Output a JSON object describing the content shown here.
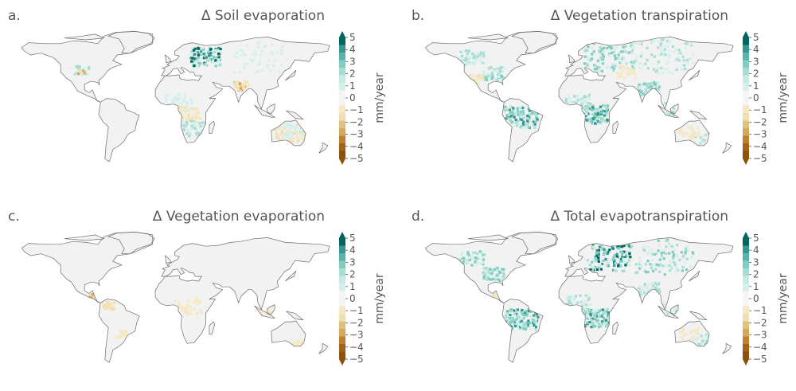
{
  "colors": {
    "land": "#f1f2f1",
    "coast": "#6b6b6b",
    "text": "#555555",
    "scale": [
      "#8c510a",
      "#a6611a",
      "#bf812d",
      "#d6a85f",
      "#dfc27d",
      "#f0dfb4",
      "#f6e8c3",
      "#f5f5f5",
      "#f5f5f5",
      "#d5efeb",
      "#c7eae5",
      "#a8ddd3",
      "#80cdc1",
      "#5ab4ac",
      "#35978f",
      "#01665e"
    ]
  },
  "colorbar": {
    "ticks": [
      "5",
      "4",
      "3",
      "2",
      "1",
      "0",
      "−1",
      "−2",
      "−3",
      "−4",
      "−5"
    ],
    "label": "mm/year",
    "range": [
      -5,
      5
    ],
    "extend": "both"
  },
  "panels": [
    {
      "letter": "a.",
      "title": "Δ Soil evaporation",
      "patches": [
        {
          "lon": 40,
          "lat": 56,
          "level": 5,
          "spread": 12,
          "count": 34
        },
        {
          "lon": 80,
          "lat": 25,
          "level": -3,
          "spread": 6,
          "count": 14
        },
        {
          "lon": 20,
          "lat": -5,
          "level": -2,
          "spread": 10,
          "count": 20
        },
        {
          "lon": 25,
          "lat": -20,
          "level": 2,
          "spread": 10,
          "count": 18
        },
        {
          "lon": 135,
          "lat": -25,
          "level": -2,
          "spread": 12,
          "count": 20
        },
        {
          "lon": 140,
          "lat": -22,
          "level": 1,
          "spread": 10,
          "count": 14
        },
        {
          "lon": -100,
          "lat": 42,
          "level": 2,
          "spread": 6,
          "count": 8
        },
        {
          "lon": -100,
          "lat": 40,
          "level": -3,
          "spread": 3,
          "count": 4
        },
        {
          "lon": 10,
          "lat": 8,
          "level": 1,
          "spread": 12,
          "count": 16
        },
        {
          "lon": 100,
          "lat": 55,
          "level": 1,
          "spread": 20,
          "count": 16
        }
      ]
    },
    {
      "letter": "b.",
      "title": "Δ Vegetation transpiration",
      "patches": [
        {
          "lon": -60,
          "lat": -8,
          "level": 4,
          "spread": 14,
          "count": 46
        },
        {
          "lon": 22,
          "lat": -5,
          "level": 4,
          "spread": 12,
          "count": 38
        },
        {
          "lon": 40,
          "lat": 56,
          "level": 3,
          "spread": 20,
          "count": 40
        },
        {
          "lon": 100,
          "lat": 58,
          "level": 2,
          "spread": 25,
          "count": 36
        },
        {
          "lon": -90,
          "lat": 38,
          "level": 3,
          "spread": 9,
          "count": 22
        },
        {
          "lon": -115,
          "lat": 55,
          "level": 2,
          "spread": 10,
          "count": 18
        },
        {
          "lon": 85,
          "lat": 22,
          "level": 3,
          "spread": 9,
          "count": 20
        },
        {
          "lon": 110,
          "lat": 0,
          "level": 2,
          "spread": 10,
          "count": 14
        },
        {
          "lon": 145,
          "lat": -30,
          "level": 2,
          "spread": 8,
          "count": 10
        },
        {
          "lon": 5,
          "lat": 8,
          "level": 2,
          "spread": 10,
          "count": 18
        },
        {
          "lon": -110,
          "lat": 32,
          "level": -2,
          "spread": 6,
          "count": 8
        },
        {
          "lon": 60,
          "lat": 40,
          "level": -1,
          "spread": 8,
          "count": 10
        },
        {
          "lon": 130,
          "lat": -25,
          "level": -1,
          "spread": 8,
          "count": 10
        }
      ]
    },
    {
      "letter": "c.",
      "title": "Δ Vegetation evaporation",
      "patches": [
        {
          "lon": -85,
          "lat": 15,
          "level": -3,
          "spread": 5,
          "count": 12
        },
        {
          "lon": -70,
          "lat": 5,
          "level": -2,
          "spread": 5,
          "count": 10
        },
        {
          "lon": 20,
          "lat": 5,
          "level": -1,
          "spread": 12,
          "count": 14
        },
        {
          "lon": 110,
          "lat": 0,
          "level": -1,
          "spread": 8,
          "count": 10
        },
        {
          "lon": 145,
          "lat": -35,
          "level": -1,
          "spread": 5,
          "count": 6
        },
        {
          "lon": -55,
          "lat": -25,
          "level": -1,
          "spread": 5,
          "count": 6
        }
      ]
    },
    {
      "letter": "d.",
      "title": "Δ Total evapotranspiration",
      "patches": [
        {
          "lon": -60,
          "lat": -10,
          "level": 4,
          "spread": 14,
          "count": 46
        },
        {
          "lon": 25,
          "lat": -8,
          "level": 4,
          "spread": 12,
          "count": 40
        },
        {
          "lon": 40,
          "lat": 56,
          "level": 5,
          "spread": 18,
          "count": 42
        },
        {
          "lon": 100,
          "lat": 58,
          "level": 3,
          "spread": 25,
          "count": 36
        },
        {
          "lon": -90,
          "lat": 38,
          "level": 3,
          "spread": 9,
          "count": 22
        },
        {
          "lon": -115,
          "lat": 55,
          "level": 3,
          "spread": 10,
          "count": 18
        },
        {
          "lon": 85,
          "lat": 22,
          "level": 2,
          "spread": 9,
          "count": 16
        },
        {
          "lon": 110,
          "lat": 0,
          "level": 2,
          "spread": 10,
          "count": 12
        },
        {
          "lon": 145,
          "lat": -30,
          "level": 2,
          "spread": 8,
          "count": 10
        },
        {
          "lon": 5,
          "lat": 8,
          "level": 2,
          "spread": 10,
          "count": 16
        },
        {
          "lon": -85,
          "lat": 15,
          "level": -2,
          "spread": 5,
          "count": 6
        },
        {
          "lon": 130,
          "lat": -25,
          "level": -1,
          "spread": 8,
          "count": 8
        }
      ]
    }
  ]
}
